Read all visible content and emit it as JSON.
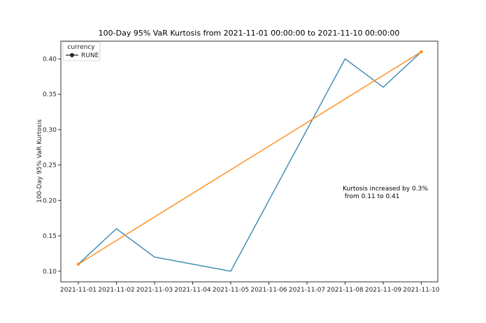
{
  "chart_data": {
    "type": "line",
    "title": "100-Day 95% VaR Kurtosis from 2021-11-01 00:00:00 to 2021-11-10 00:00:00",
    "xlabel": "",
    "ylabel": "100-Day 95% VaR Kurtosis",
    "categories": [
      "2021-11-01",
      "2021-11-02",
      "2021-11-03",
      "2021-11-04",
      "2021-11-05",
      "2021-11-06",
      "2021-11-07",
      "2021-11-08",
      "2021-11-09",
      "2021-11-10"
    ],
    "ylim": [
      0.085,
      0.425
    ],
    "yticks": [
      "0.10",
      "0.15",
      "0.20",
      "0.25",
      "0.30",
      "0.35",
      "0.40"
    ],
    "series": [
      {
        "name": "RUNE",
        "color": "#3a87b0",
        "points": [
          {
            "x": "2021-11-01",
            "y": 0.11
          },
          {
            "x": "2021-11-02",
            "y": 0.16
          },
          {
            "x": "2021-11-03",
            "y": 0.12
          },
          {
            "x": "2021-11-05",
            "y": 0.1
          },
          {
            "x": "2021-11-08",
            "y": 0.4
          },
          {
            "x": "2021-11-09",
            "y": 0.36
          },
          {
            "x": "2021-11-10",
            "y": 0.41
          }
        ]
      },
      {
        "color": "#ff8c1a",
        "marker": "dot",
        "points": [
          {
            "x": "2021-11-01",
            "y": 0.11
          },
          {
            "x": "2021-11-10",
            "y": 0.41
          }
        ]
      }
    ],
    "legend": {
      "title": "currency",
      "placement": "top-left",
      "entries": [
        "RUNE"
      ]
    },
    "annotation": {
      "lines": [
        "Kurtosis increased by 0.3%",
        " from 0.11 to 0.41"
      ]
    },
    "grid": false
  }
}
